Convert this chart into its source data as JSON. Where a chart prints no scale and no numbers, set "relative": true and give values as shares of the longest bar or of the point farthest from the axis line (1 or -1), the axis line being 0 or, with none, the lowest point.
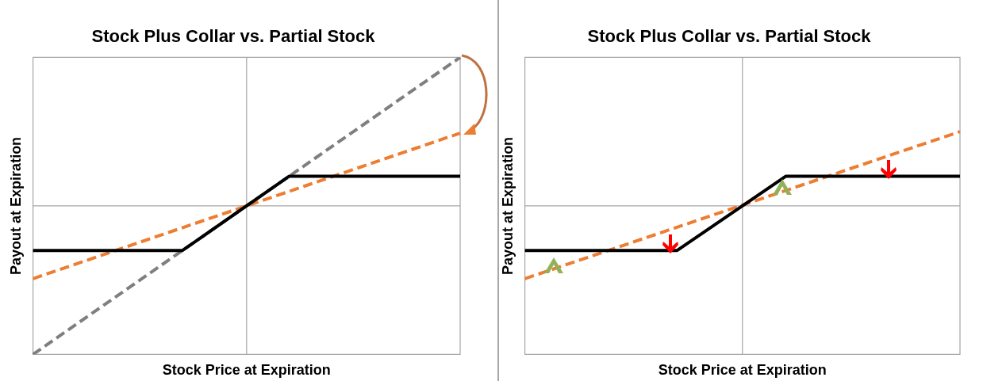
{
  "chart_data": [
    {
      "type": "line",
      "title": "Stock Plus Collar vs. Partial Stock",
      "xlabel": "Stock Price at Expiration",
      "ylabel": "Payout at Expiration",
      "relative": true,
      "legend": false,
      "tick_labels": false,
      "marker": "none",
      "categories": [
        null,
        null,
        null,
        null,
        null,
        null,
        null,
        null,
        null,
        null,
        null,
        null,
        null,
        null,
        null,
        null,
        null,
        null,
        null,
        null,
        null
      ],
      "series": [
        {
          "color": "#000000",
          "line_style": "solid",
          "values": [
            -0.3,
            null,
            null,
            null,
            null,
            null,
            null,
            -0.3,
            null,
            null,
            0,
            null,
            0.2,
            null,
            null,
            null,
            null,
            null,
            null,
            null,
            0.2
          ]
        },
        {
          "color": "#7f7f7f",
          "line_style": "dashed",
          "values": [
            -1,
            null,
            null,
            null,
            null,
            null,
            null,
            null,
            null,
            null,
            null,
            null,
            null,
            null,
            null,
            null,
            null,
            null,
            null,
            null,
            1
          ]
        },
        {
          "color": "#ed7d31",
          "line_style": "dashed",
          "values": [
            -0.49,
            null,
            null,
            null,
            null,
            null,
            null,
            null,
            null,
            null,
            null,
            null,
            null,
            null,
            null,
            null,
            null,
            null,
            null,
            null,
            0.49
          ]
        }
      ]
    },
    {
      "type": "line",
      "title": "Stock Plus Collar vs. Partial Stock",
      "xlabel": "Stock Price at Expiration",
      "ylabel": "Payout at Expiration",
      "relative": true,
      "legend": false,
      "tick_labels": false,
      "marker": "none",
      "categories": [
        null,
        null,
        null,
        null,
        null,
        null,
        null,
        null,
        null,
        null,
        null,
        null,
        null,
        null,
        null,
        null,
        null,
        null,
        null,
        null,
        null
      ],
      "series": [
        {
          "color": "#000000",
          "line_style": "solid",
          "values": [
            -0.6,
            null,
            null,
            null,
            null,
            null,
            null,
            -0.6,
            null,
            null,
            0,
            null,
            0.4,
            null,
            null,
            null,
            null,
            null,
            null,
            null,
            0.4
          ]
        },
        {
          "color": "#ed7d31",
          "line_style": "dashed",
          "values": [
            -0.98,
            null,
            null,
            null,
            null,
            null,
            null,
            null,
            null,
            null,
            null,
            null,
            null,
            null,
            null,
            null,
            null,
            null,
            null,
            null,
            1
          ]
        }
      ]
    }
  ]
}
